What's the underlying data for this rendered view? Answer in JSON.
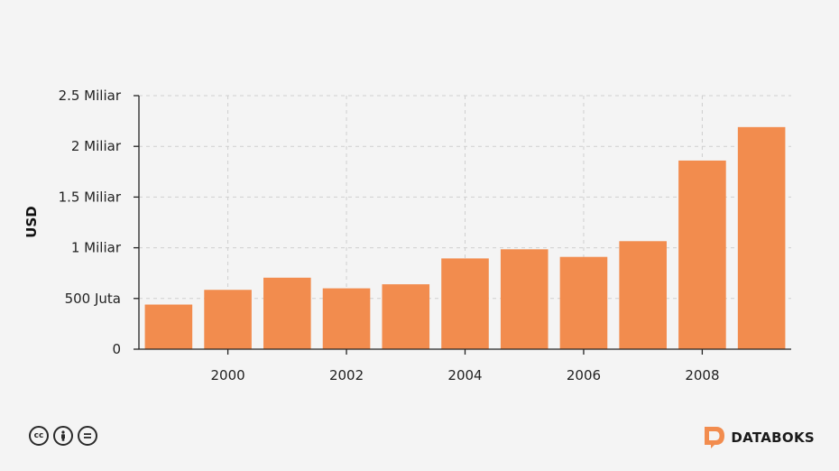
{
  "chart_data": {
    "type": "bar",
    "x": [
      1999,
      2000,
      2001,
      2002,
      2003,
      2004,
      2005,
      2006,
      2007,
      2008,
      2009
    ],
    "values": [
      440000000,
      585000000,
      705000000,
      600000000,
      640000000,
      895000000,
      985000000,
      910000000,
      1065000000,
      1860000000,
      2190000000
    ],
    "ylabel": "USD",
    "ylim": [
      0,
      2500000000
    ],
    "xlim": [
      1998.5,
      2009.5
    ],
    "yticks": [
      0,
      500000000,
      1000000000,
      1500000000,
      2000000000,
      2500000000
    ],
    "ytick_labels": [
      "0",
      "500 Juta",
      "1 Miliar",
      "1.5 Miliar",
      "2 Miliar",
      "2.5 Miliar"
    ],
    "xticks": [
      2000,
      2002,
      2004,
      2006,
      2008
    ],
    "xtick_labels": [
      "2000",
      "2002",
      "2004",
      "2006",
      "2008"
    ],
    "grid": true,
    "bar_color": "#f28c4e"
  },
  "footer": {
    "license_icons": [
      "creative-commons-icon",
      "attribution-icon",
      "no-derivatives-icon"
    ],
    "license_glyphs": [
      "cc",
      "i",
      "="
    ],
    "brand_name": "DATABOKS",
    "brand_color": "#f28c4e"
  }
}
